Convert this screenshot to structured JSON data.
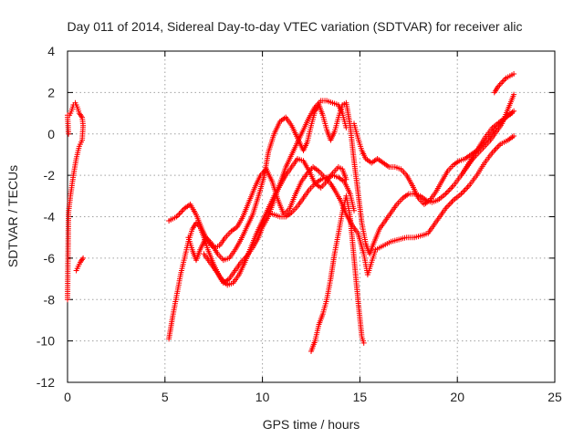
{
  "chart_data": {
    "type": "scatter",
    "title": "Day 011 of 2014, Sidereal Day-to-day VTEC variation (SDTVAR) for receiver alic",
    "xlabel": "GPS time / hours",
    "ylabel": "SDTVAR / TECUs",
    "xlim": [
      0,
      25
    ],
    "ylim": [
      -12,
      4
    ],
    "xticks": [
      0,
      5,
      10,
      15,
      20,
      25
    ],
    "yticks": [
      -12,
      -10,
      -8,
      -6,
      -4,
      -2,
      0,
      2,
      4
    ],
    "xtick_labels": [
      "0",
      "5",
      "10",
      "15",
      "20",
      "25"
    ],
    "ytick_labels": [
      "-12",
      "-10",
      "-8",
      "-6",
      "-4",
      "-2",
      "0",
      "2",
      "4"
    ],
    "grid": true,
    "marker": "+",
    "color": "#ff0000",
    "series": [
      {
        "points": [
          [
            0.0,
            -8.0
          ],
          [
            0.05,
            -3.8
          ],
          [
            0.15,
            -3.0
          ],
          [
            0.3,
            -2.0
          ],
          [
            0.45,
            -1.2
          ],
          [
            0.6,
            -0.6
          ],
          [
            0.75,
            -0.3
          ],
          [
            0.8,
            0.4
          ],
          [
            0.75,
            0.8
          ],
          [
            0.6,
            1.0
          ],
          [
            0.5,
            1.3
          ],
          [
            0.4,
            1.5
          ],
          [
            0.3,
            1.4
          ],
          [
            0.2,
            1.1
          ],
          [
            0.1,
            0.9
          ],
          [
            0.0,
            0.9
          ],
          [
            0.05,
            0.0
          ]
        ]
      },
      {
        "points": [
          [
            0.45,
            -6.6
          ],
          [
            0.55,
            -6.4
          ],
          [
            0.65,
            -6.2
          ],
          [
            0.8,
            -6.0
          ]
        ]
      },
      {
        "points": [
          [
            5.2,
            -9.9
          ],
          [
            5.4,
            -8.8
          ],
          [
            5.6,
            -7.8
          ],
          [
            5.8,
            -6.8
          ],
          [
            6.0,
            -6.0
          ],
          [
            6.2,
            -5.2
          ],
          [
            6.4,
            -4.6
          ],
          [
            6.6,
            -4.3
          ],
          [
            6.8,
            -4.5
          ],
          [
            7.0,
            -5.0
          ],
          [
            7.2,
            -5.6
          ],
          [
            7.5,
            -6.3
          ],
          [
            7.8,
            -6.9
          ],
          [
            8.0,
            -7.2
          ],
          [
            8.3,
            -7.0
          ],
          [
            8.6,
            -6.6
          ],
          [
            8.9,
            -6.2
          ],
          [
            9.2,
            -5.9
          ],
          [
            9.5,
            -5.5
          ],
          [
            9.8,
            -5.0
          ],
          [
            10.0,
            -4.5
          ],
          [
            10.3,
            -4.0
          ],
          [
            10.6,
            -3.2
          ],
          [
            10.9,
            -2.4
          ],
          [
            11.2,
            -1.6
          ],
          [
            11.5,
            -1.0
          ],
          [
            11.8,
            -0.4
          ],
          [
            12.1,
            0.2
          ],
          [
            12.4,
            0.8
          ],
          [
            12.7,
            1.3
          ],
          [
            13.0,
            1.6
          ],
          [
            13.3,
            1.6
          ],
          [
            13.6,
            1.5
          ],
          [
            13.9,
            1.4
          ],
          [
            14.1,
            1.0
          ],
          [
            14.3,
            0.3
          ]
        ]
      },
      {
        "points": [
          [
            5.2,
            -4.2
          ],
          [
            5.6,
            -4.0
          ],
          [
            6.0,
            -3.6
          ],
          [
            6.3,
            -3.4
          ],
          [
            6.6,
            -3.9
          ],
          [
            6.9,
            -4.6
          ],
          [
            7.2,
            -5.2
          ],
          [
            7.5,
            -5.5
          ],
          [
            7.8,
            -5.4
          ],
          [
            8.1,
            -5.0
          ],
          [
            8.4,
            -4.7
          ],
          [
            8.7,
            -4.5
          ],
          [
            9.0,
            -4.0
          ],
          [
            9.3,
            -3.3
          ],
          [
            9.6,
            -2.6
          ],
          [
            9.9,
            -2.0
          ],
          [
            10.2,
            -1.7
          ],
          [
            10.5,
            -2.3
          ],
          [
            10.8,
            -3.2
          ],
          [
            11.1,
            -3.9
          ],
          [
            11.4,
            -3.6
          ],
          [
            11.7,
            -2.9
          ],
          [
            12.0,
            -2.3
          ],
          [
            12.3,
            -1.9
          ],
          [
            12.6,
            -1.6
          ],
          [
            12.9,
            -1.8
          ],
          [
            13.2,
            -2.1
          ],
          [
            13.5,
            -2.4
          ],
          [
            13.7,
            -2.7
          ],
          [
            14.0,
            -3.2
          ],
          [
            14.3,
            -3.9
          ],
          [
            14.6,
            -4.4
          ],
          [
            14.9,
            -4.8
          ],
          [
            15.2,
            -5.8
          ],
          [
            15.4,
            -6.8
          ],
          [
            15.6,
            -6.2
          ],
          [
            15.8,
            -5.6
          ],
          [
            16.2,
            -5.4
          ],
          [
            16.6,
            -5.2
          ],
          [
            17.0,
            -5.1
          ],
          [
            17.4,
            -5.0
          ],
          [
            17.8,
            -5.0
          ],
          [
            18.2,
            -4.9
          ],
          [
            18.5,
            -4.8
          ],
          [
            18.8,
            -4.4
          ],
          [
            19.1,
            -4.0
          ],
          [
            19.4,
            -3.6
          ],
          [
            19.8,
            -3.2
          ],
          [
            20.2,
            -2.9
          ],
          [
            20.6,
            -2.5
          ],
          [
            21.0,
            -2.0
          ],
          [
            21.4,
            -1.4
          ],
          [
            21.8,
            -0.9
          ],
          [
            22.2,
            -0.5
          ],
          [
            22.6,
            -0.3
          ],
          [
            22.9,
            -0.1
          ]
        ]
      },
      {
        "points": [
          [
            6.2,
            -5.0
          ],
          [
            6.4,
            -5.6
          ],
          [
            6.6,
            -6.1
          ],
          [
            6.8,
            -5.6
          ],
          [
            7.1,
            -5.0
          ],
          [
            7.4,
            -5.3
          ],
          [
            7.7,
            -5.8
          ],
          [
            8.0,
            -6.1
          ],
          [
            8.3,
            -6.0
          ],
          [
            8.6,
            -5.6
          ],
          [
            8.9,
            -5.1
          ],
          [
            9.2,
            -4.5
          ],
          [
            9.5,
            -3.9
          ],
          [
            9.8,
            -3.0
          ],
          [
            10.1,
            -2.0
          ],
          [
            10.3,
            -0.9
          ],
          [
            10.6,
            0.0
          ],
          [
            10.9,
            0.6
          ],
          [
            11.2,
            0.8
          ],
          [
            11.5,
            0.4
          ],
          [
            11.8,
            -0.2
          ],
          [
            12.1,
            -0.8
          ],
          [
            12.3,
            -0.4
          ],
          [
            12.5,
            0.4
          ],
          [
            12.7,
            1.1
          ],
          [
            12.9,
            1.4
          ],
          [
            13.1,
            0.9
          ],
          [
            13.3,
            0.2
          ],
          [
            13.5,
            -0.3
          ],
          [
            13.7,
            0.1
          ],
          [
            13.9,
            0.8
          ],
          [
            14.1,
            1.4
          ],
          [
            14.3,
            1.5
          ],
          [
            14.5,
            0.4
          ],
          [
            14.7,
            -1.3
          ],
          [
            14.9,
            -2.8
          ],
          [
            15.1,
            -4.3
          ],
          [
            15.3,
            -5.3
          ],
          [
            15.5,
            -5.8
          ],
          [
            15.7,
            -5.3
          ],
          [
            16.0,
            -4.6
          ],
          [
            16.3,
            -4.2
          ],
          [
            16.6,
            -3.8
          ],
          [
            16.9,
            -3.4
          ],
          [
            17.2,
            -3.1
          ],
          [
            17.5,
            -2.9
          ],
          [
            17.8,
            -2.9
          ],
          [
            18.1,
            -3.0
          ],
          [
            18.4,
            -3.2
          ],
          [
            18.7,
            -3.3
          ],
          [
            19.0,
            -3.2
          ],
          [
            19.4,
            -2.9
          ],
          [
            19.8,
            -2.5
          ],
          [
            20.2,
            -2.0
          ],
          [
            20.6,
            -1.4
          ],
          [
            21.0,
            -0.8
          ],
          [
            21.4,
            -0.2
          ],
          [
            21.8,
            0.3
          ],
          [
            22.2,
            0.6
          ],
          [
            22.6,
            0.9
          ],
          [
            22.9,
            1.1
          ]
        ]
      },
      {
        "points": [
          [
            7.0,
            -5.8
          ],
          [
            7.3,
            -6.2
          ],
          [
            7.6,
            -6.6
          ],
          [
            7.9,
            -7.0
          ],
          [
            8.2,
            -7.3
          ],
          [
            8.5,
            -7.2
          ],
          [
            8.8,
            -6.8
          ],
          [
            9.1,
            -6.2
          ],
          [
            9.4,
            -5.5
          ],
          [
            9.7,
            -4.8
          ],
          [
            10.0,
            -4.2
          ],
          [
            10.3,
            -3.6
          ],
          [
            10.6,
            -3.0
          ],
          [
            10.9,
            -2.5
          ],
          [
            11.2,
            -2.0
          ],
          [
            11.5,
            -1.6
          ],
          [
            11.8,
            -1.2
          ],
          [
            12.1,
            -1.3
          ],
          [
            12.4,
            -1.8
          ],
          [
            12.7,
            -2.4
          ],
          [
            13.0,
            -2.6
          ],
          [
            13.3,
            -2.3
          ],
          [
            13.6,
            -1.9
          ],
          [
            13.9,
            -1.6
          ],
          [
            14.1,
            -1.7
          ],
          [
            14.3,
            -2.2
          ]
        ]
      },
      {
        "points": [
          [
            10.3,
            -3.8
          ],
          [
            10.6,
            -3.9
          ],
          [
            10.9,
            -4.0
          ],
          [
            11.2,
            -4.0
          ],
          [
            11.5,
            -3.8
          ],
          [
            11.8,
            -3.5
          ],
          [
            12.1,
            -3.1
          ],
          [
            12.4,
            -2.7
          ],
          [
            12.7,
            -2.4
          ],
          [
            13.0,
            -2.2
          ],
          [
            13.3,
            -2.1
          ],
          [
            13.6,
            -2.0
          ],
          [
            13.9,
            -2.1
          ],
          [
            14.2,
            -2.3
          ],
          [
            14.5,
            -2.9
          ],
          [
            14.7,
            -3.7
          ]
        ]
      },
      {
        "points": [
          [
            12.5,
            -10.5
          ],
          [
            12.7,
            -10.0
          ],
          [
            12.9,
            -9.2
          ],
          [
            13.1,
            -8.7
          ],
          [
            13.3,
            -8.0
          ],
          [
            13.5,
            -7.0
          ],
          [
            13.7,
            -5.8
          ],
          [
            13.9,
            -4.8
          ],
          [
            14.1,
            -3.8
          ],
          [
            14.3,
            -3.0
          ],
          [
            14.5,
            -4.0
          ],
          [
            14.7,
            -6.0
          ],
          [
            14.9,
            -8.0
          ],
          [
            15.1,
            -9.8
          ],
          [
            15.2,
            -10.1
          ]
        ]
      },
      {
        "points": [
          [
            14.7,
            0.5
          ],
          [
            14.9,
            -0.2
          ],
          [
            15.1,
            -0.8
          ],
          [
            15.3,
            -1.2
          ],
          [
            15.6,
            -1.4
          ],
          [
            15.9,
            -1.2
          ],
          [
            16.2,
            -1.4
          ],
          [
            16.5,
            -1.6
          ],
          [
            16.8,
            -1.6
          ],
          [
            17.1,
            -1.7
          ],
          [
            17.4,
            -2.0
          ],
          [
            17.7,
            -2.5
          ],
          [
            18.0,
            -3.1
          ],
          [
            18.3,
            -3.4
          ],
          [
            18.6,
            -3.2
          ],
          [
            18.9,
            -2.8
          ],
          [
            19.2,
            -2.3
          ],
          [
            19.5,
            -1.8
          ],
          [
            19.8,
            -1.5
          ],
          [
            20.1,
            -1.3
          ],
          [
            20.4,
            -1.2
          ],
          [
            20.7,
            -1.0
          ],
          [
            21.0,
            -0.8
          ],
          [
            21.3,
            -0.5
          ],
          [
            21.6,
            -0.2
          ],
          [
            21.9,
            0.2
          ],
          [
            22.2,
            0.5
          ],
          [
            22.5,
            0.8
          ],
          [
            22.8,
            1.0
          ]
        ]
      },
      {
        "points": [
          [
            20.2,
            -2.0
          ],
          [
            20.5,
            -1.6
          ],
          [
            20.8,
            -1.2
          ],
          [
            21.1,
            -0.9
          ],
          [
            21.4,
            -0.6
          ],
          [
            21.7,
            -0.3
          ],
          [
            22.0,
            0.1
          ],
          [
            22.3,
            0.5
          ],
          [
            22.6,
            1.2
          ],
          [
            22.9,
            1.9
          ]
        ]
      },
      {
        "points": [
          [
            21.9,
            2.0
          ],
          [
            22.1,
            2.3
          ],
          [
            22.3,
            2.5
          ],
          [
            22.5,
            2.7
          ],
          [
            22.7,
            2.8
          ],
          [
            22.9,
            2.9
          ]
        ]
      }
    ]
  }
}
